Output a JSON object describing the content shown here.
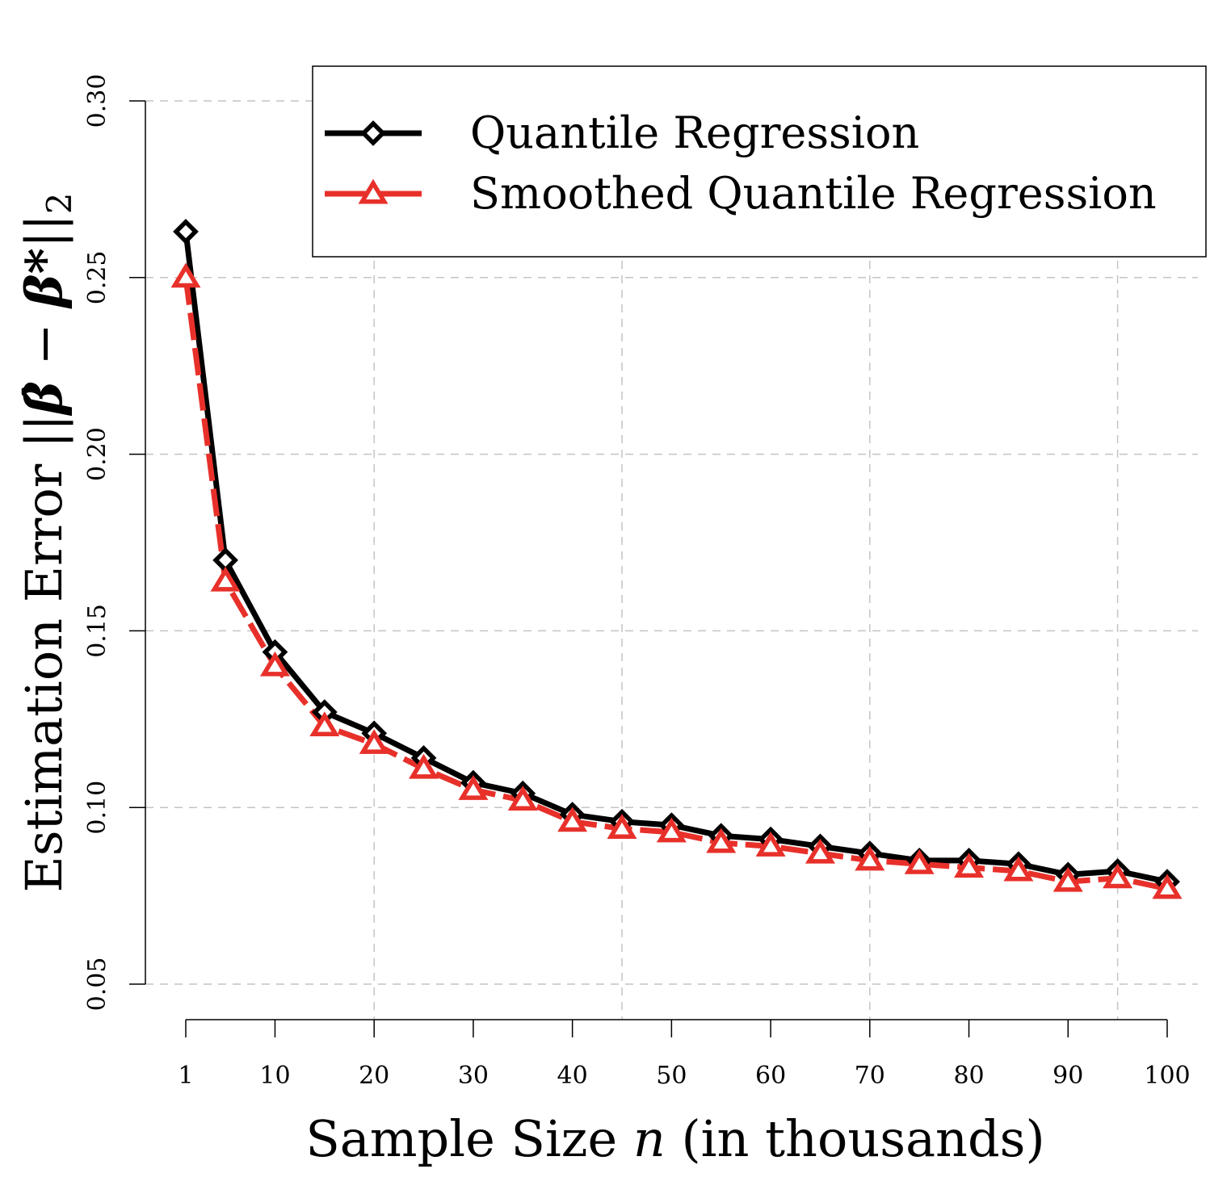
{
  "chart_data": {
    "type": "line",
    "xlabel": "Sample Size n (in thousands)",
    "xlabel_parts": {
      "before": "Sample Size ",
      "var": "n",
      "after": " (in thousands)"
    },
    "ylabel": "Estimation Error ||β̂ − β*||₂",
    "ylabel_parts": {
      "text": "Estimation Error ",
      "norm_open": "||",
      "beta_hat": "β̂",
      "minus": " − ",
      "beta_star": "β*",
      "norm_close": "||",
      "sub": "2"
    },
    "x_ticks": [
      1,
      10,
      20,
      30,
      40,
      50,
      60,
      70,
      80,
      90,
      100
    ],
    "x_tick_labels": [
      "1",
      "10",
      "20",
      "30",
      "40",
      "50",
      "60",
      "70",
      "80",
      "90",
      "100"
    ],
    "y_ticks": [
      0.05,
      0.1,
      0.15,
      0.2,
      0.25,
      0.3
    ],
    "y_tick_labels": [
      "0.05",
      "0.10",
      "0.15",
      "0.20",
      "0.25",
      "0.30"
    ],
    "xlim": [
      1,
      100
    ],
    "ylim": [
      0.05,
      0.3
    ],
    "grid": true,
    "legend_position": "top-right",
    "x": [
      1,
      5,
      10,
      15,
      20,
      25,
      30,
      35,
      40,
      45,
      50,
      55,
      60,
      65,
      70,
      75,
      80,
      85,
      90,
      95,
      100
    ],
    "series": [
      {
        "name": "Quantile Regression",
        "color": "#000000",
        "marker": "diamond",
        "values": [
          0.263,
          0.17,
          0.144,
          0.127,
          0.121,
          0.114,
          0.107,
          0.104,
          0.098,
          0.096,
          0.095,
          0.092,
          0.091,
          0.089,
          0.087,
          0.085,
          0.085,
          0.084,
          0.081,
          0.082,
          0.079
        ]
      },
      {
        "name": "Smoothed Quantile Regression",
        "color": "#e8302a",
        "marker": "triangle",
        "values": [
          0.25,
          0.164,
          0.14,
          0.123,
          0.118,
          0.111,
          0.105,
          0.102,
          0.096,
          0.094,
          0.093,
          0.09,
          0.089,
          0.087,
          0.085,
          0.084,
          0.083,
          0.082,
          0.079,
          0.08,
          0.077
        ]
      }
    ]
  }
}
